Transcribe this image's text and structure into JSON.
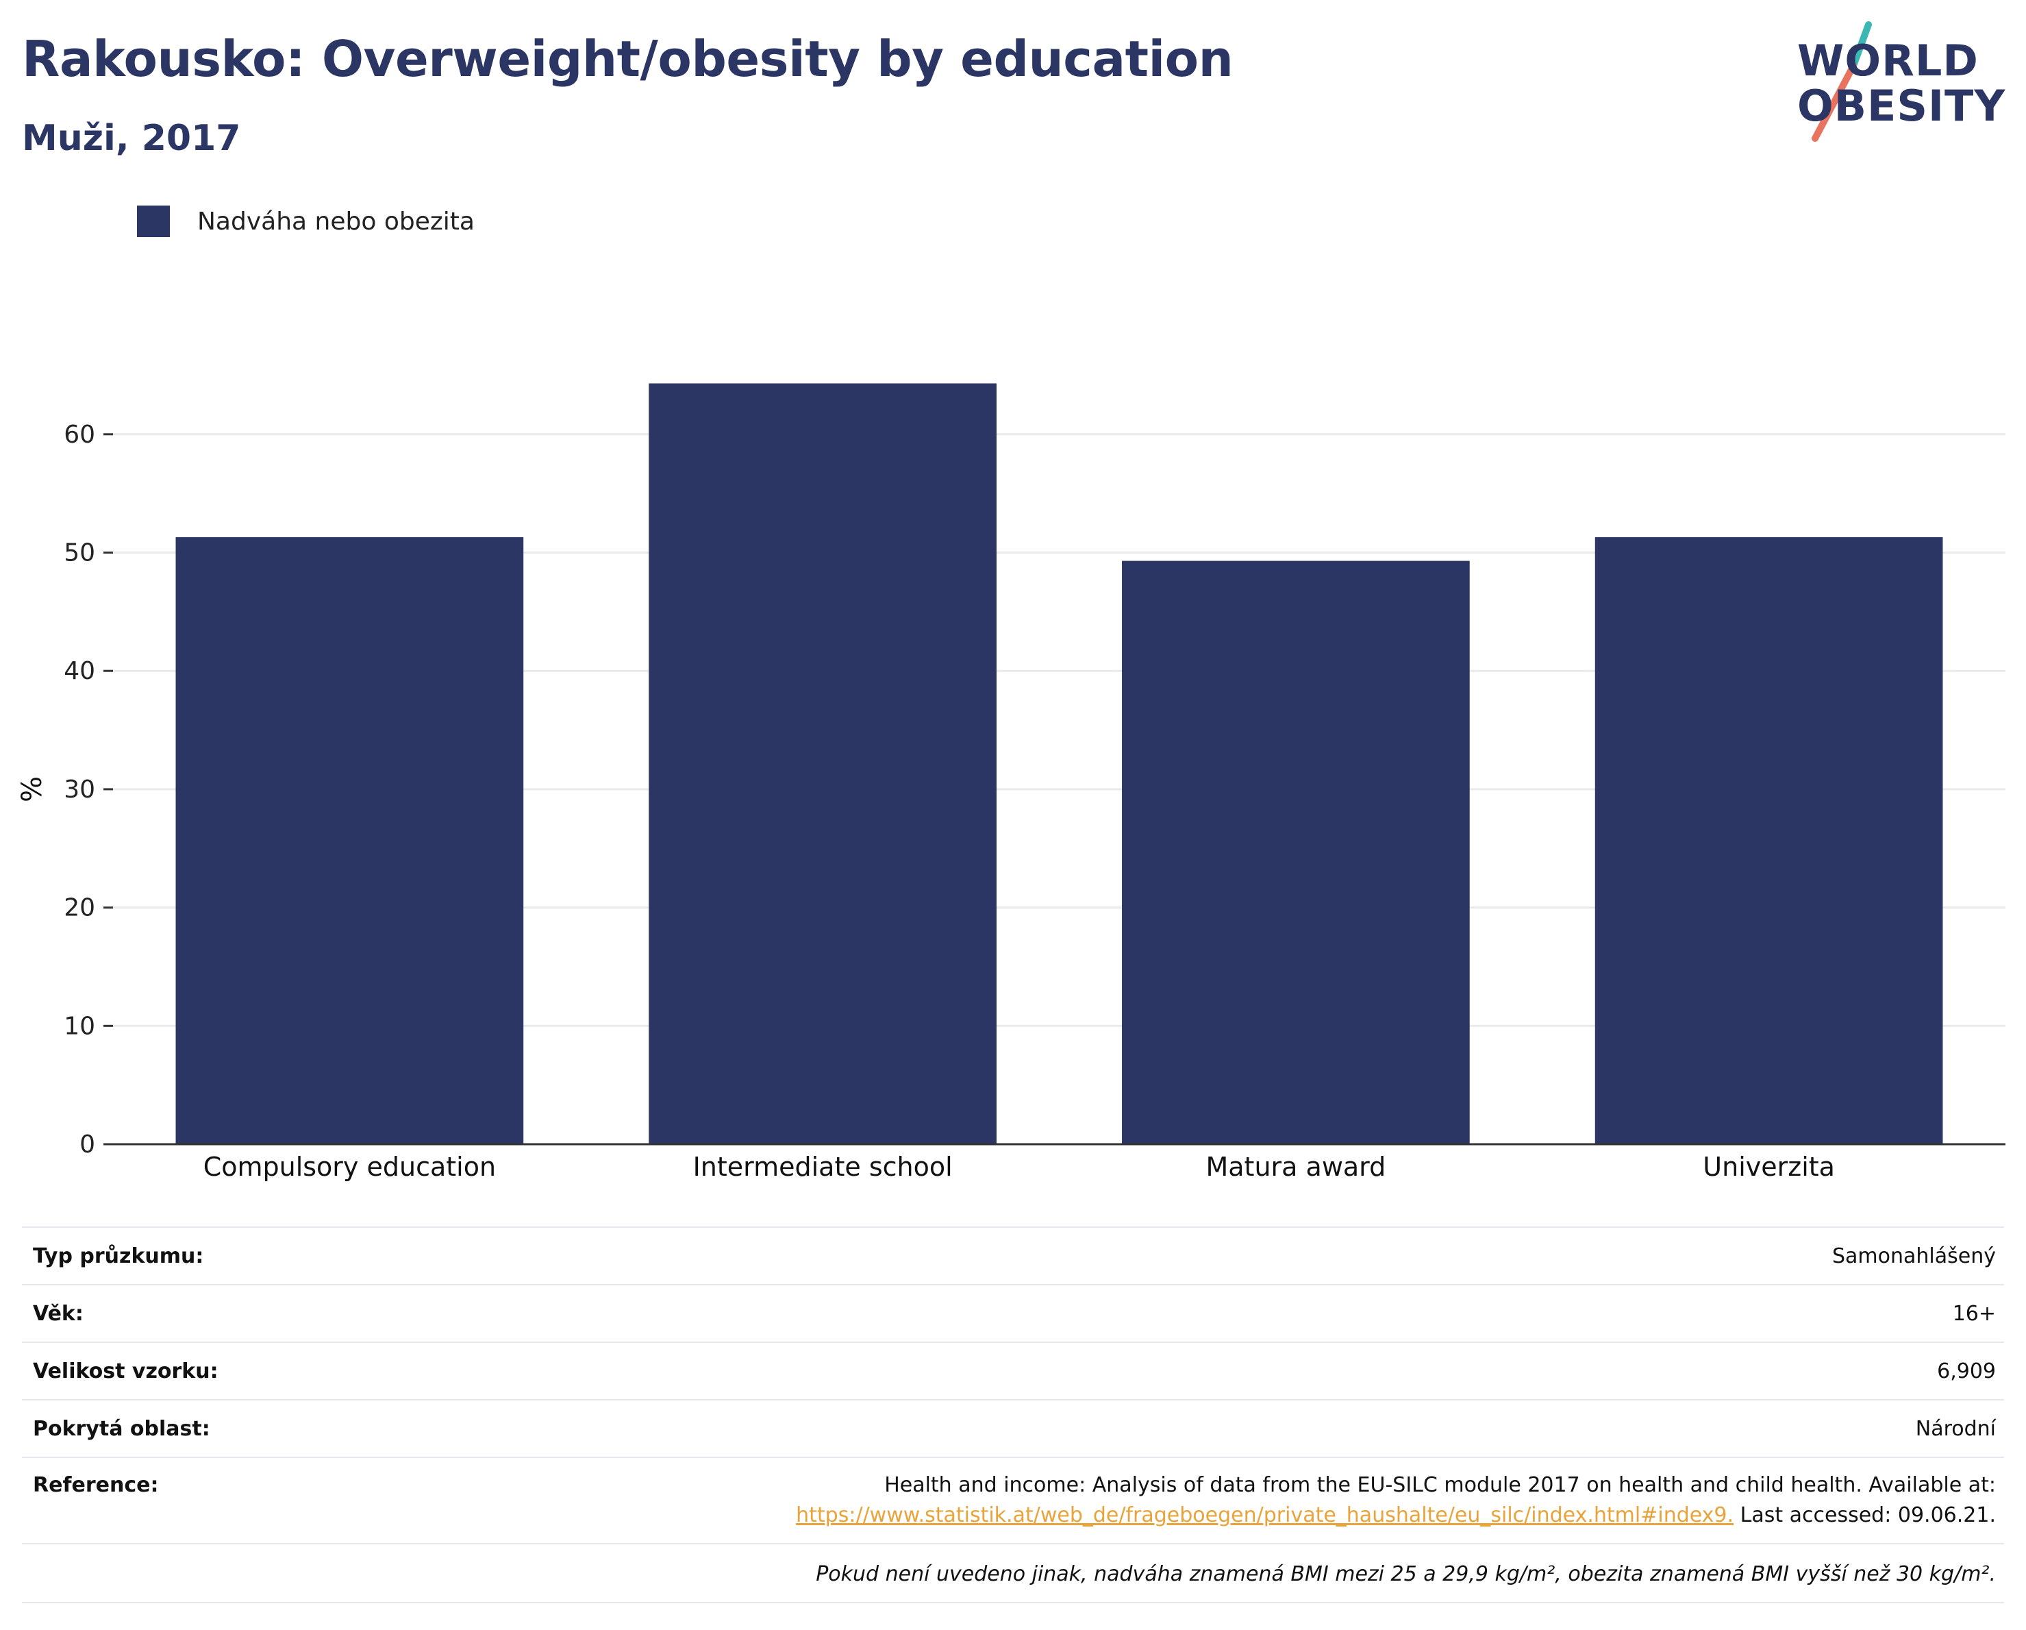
{
  "title": "Rakousko: Overweight/obesity by education",
  "subtitle": "Muži, 2017",
  "logo": {
    "line1": "WORLD",
    "line2": "OBESITY"
  },
  "legend": {
    "label": "Nadváha nebo obezita",
    "color": "#2b3664"
  },
  "chart_data": {
    "type": "bar",
    "categories": [
      "Compulsory education",
      "Intermediate school",
      "Matura award",
      "Univerzita"
    ],
    "series": [
      {
        "name": "Nadváha nebo obezita",
        "values": [
          51.3,
          64.3,
          49.3,
          51.3
        ]
      }
    ],
    "ylabel": "%",
    "xlabel": "",
    "ylim": [
      0,
      70
    ],
    "yticks": [
      0,
      10,
      20,
      30,
      40,
      50,
      60
    ],
    "grid": true,
    "legend_position": "top-left",
    "bar_color": "#2b3664"
  },
  "info": {
    "survey_type_label": "Typ průzkumu:",
    "survey_type_value": "Samonahlášený",
    "age_label": "Věk:",
    "age_value": "16+",
    "sample_label": "Velikost vzorku:",
    "sample_value": "6,909",
    "area_label": "Pokrytá oblast:",
    "area_value": "Národní",
    "reference_label": "Reference:",
    "reference_text": "Health and income: Analysis of data from the EU-SILC module 2017 on health and child health. Available at:",
    "reference_link": "https://www.statistik.at/web_de/frageboegen/private_haushalte/eu_silc/index.html#index9.",
    "reference_accessed": " Last accessed: 09.06.21.",
    "note": "Pokud není uvedeno jinak, nadváha znamená BMI mezi 25 a 29,9 kg/m², obezita znamená BMI vyšší než 30 kg/m²."
  }
}
